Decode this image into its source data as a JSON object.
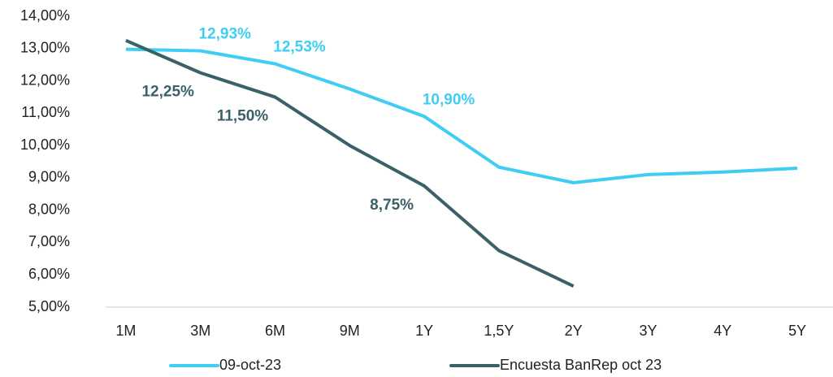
{
  "chart_data": {
    "type": "line",
    "categories": [
      "1M",
      "3M",
      "6M",
      "9M",
      "1Y",
      "1,5Y",
      "2Y",
      "3Y",
      "4Y",
      "5Y"
    ],
    "series": [
      {
        "name": "09-oct-23",
        "color": "#40cdf4",
        "values": [
          12.98,
          12.93,
          12.53,
          11.75,
          10.9,
          9.33,
          8.85,
          9.1,
          9.18,
          9.3
        ],
        "value_labels": [
          null,
          "12,93%",
          "12,53%",
          null,
          "10,90%",
          null,
          null,
          null,
          null,
          null
        ]
      },
      {
        "name": "Encuesta BanRep oct 23",
        "color": "#3a6167",
        "values": [
          13.25,
          12.25,
          11.5,
          10.0,
          8.75,
          6.75,
          5.65,
          null,
          null,
          null
        ],
        "value_labels": [
          null,
          "12,25%",
          "11,50%",
          null,
          "8,75%",
          null,
          null,
          null,
          null,
          null
        ]
      }
    ],
    "ylim": [
      5,
      14
    ],
    "yticks": [
      {
        "value": 5,
        "label": "5,00%"
      },
      {
        "value": 6,
        "label": "6,00%"
      },
      {
        "value": 7,
        "label": "7,00%"
      },
      {
        "value": 8,
        "label": "8,00%"
      },
      {
        "value": 9,
        "label": "9,00%"
      },
      {
        "value": 10,
        "label": "10,00%"
      },
      {
        "value": 11,
        "label": "11,00%"
      },
      {
        "value": 12,
        "label": "12,00%"
      },
      {
        "value": 13,
        "label": "13,00%"
      },
      {
        "value": 14,
        "label": "14,00%"
      }
    ],
    "grid": false,
    "legend": "bottom"
  }
}
